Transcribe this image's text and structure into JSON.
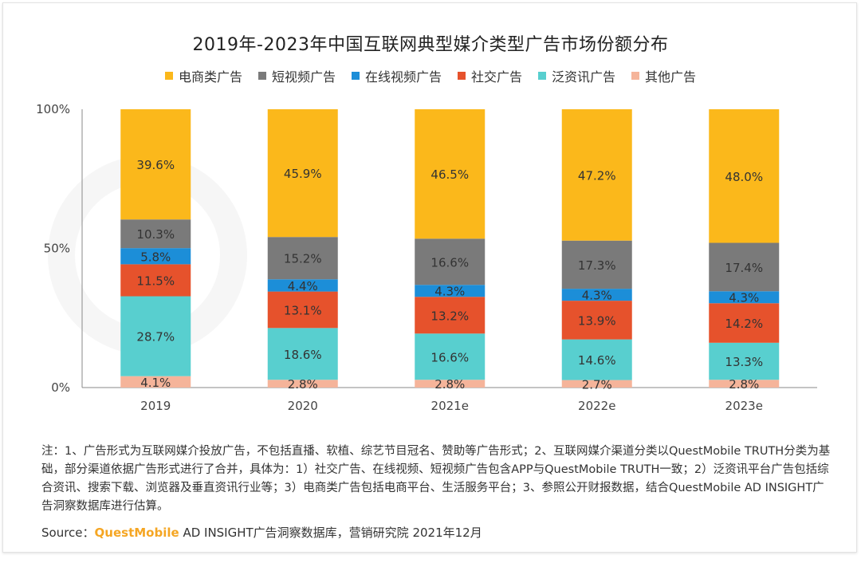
{
  "title": "2019年-2023年中国互联网典型媒介类型广告市场份额分布",
  "legend": [
    {
      "label": "电商类广告",
      "color": "#fbb81b"
    },
    {
      "label": "短视频广告",
      "color": "#7a7a7a"
    },
    {
      "label": "在线视频广告",
      "color": "#1c8ed8"
    },
    {
      "label": "社交广告",
      "color": "#e6522c"
    },
    {
      "label": "泛资讯广告",
      "color": "#58cfcf"
    },
    {
      "label": "其他广告",
      "color": "#f5b49a"
    }
  ],
  "chart_data": {
    "type": "bar",
    "stacked": true,
    "categories": [
      "2019",
      "2020",
      "2021e",
      "2022e",
      "2023e"
    ],
    "y_ticks": [
      "100%",
      "50%",
      "0%"
    ],
    "ylim": [
      0,
      100
    ],
    "series": [
      {
        "name": "其他广告",
        "values": [
          4.1,
          2.8,
          2.8,
          2.7,
          2.8
        ],
        "labels": [
          "4.1%",
          "2.8%",
          "2.8%",
          "2.7%",
          "2.8%"
        ]
      },
      {
        "name": "泛资讯广告",
        "values": [
          28.7,
          18.6,
          16.6,
          14.6,
          13.3
        ],
        "labels": [
          "28.7%",
          "18.6%",
          "16.6%",
          "14.6%",
          "13.3%"
        ]
      },
      {
        "name": "社交广告",
        "values": [
          11.5,
          13.1,
          13.2,
          13.9,
          14.2
        ],
        "labels": [
          "11.5%",
          "13.1%",
          "13.2%",
          "13.9%",
          "14.2%"
        ]
      },
      {
        "name": "在线视频广告",
        "values": [
          5.8,
          4.4,
          4.3,
          4.3,
          4.3
        ],
        "labels": [
          "5.8%",
          "4.4%",
          "4.3%",
          "4.3%",
          "4.3%"
        ]
      },
      {
        "name": "短视频广告",
        "values": [
          10.3,
          15.2,
          16.6,
          17.3,
          17.4
        ],
        "labels": [
          "10.3%",
          "15.2%",
          "16.6%",
          "17.3%",
          "17.4%"
        ]
      },
      {
        "name": "电商类广告",
        "values": [
          39.6,
          45.9,
          46.5,
          47.2,
          48.0
        ],
        "labels": [
          "39.6%",
          "45.9%",
          "46.5%",
          "47.2%",
          "48.0%"
        ]
      }
    ]
  },
  "note": "注：1、广告形式为互联网媒介投放广告，不包括直播、软植、综艺节目冠名、赞助等广告形式；2、互联网媒介渠道分类以QuestMobile TRUTH分类为基础，部分渠道依据广告形式进行了合并，具体为：1）社交广告、在线视频、短视频广告包含APP与QuestMobile TRUTH一致；2）泛资讯平台广告包括综合资讯、搜索下载、浏览器及垂直资讯行业等；3）电商类广告包括电商平台、生活服务平台；3、参照公开财报数据，结合QuestMobile AD INSIGHT广告洞察数据库进行估算。",
  "source": {
    "prefix": "Source：",
    "brand": "QuestMobile",
    "rest": " AD INSIGHT广告洞察数据库，营销研究院 2021年12月"
  }
}
